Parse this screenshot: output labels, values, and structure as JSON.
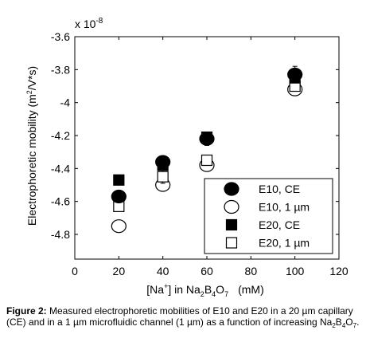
{
  "chart_data": {
    "type": "scatter",
    "title": "",
    "xlabel": "[Na⁺] in Na₂B₄O₇   (mM)",
    "xlabel_parts": {
      "a": "[Na",
      "sup": "+",
      "b": "] in Na",
      "s1": "2",
      "c": "B",
      "s2": "4",
      "d": "O",
      "s3": "7",
      "unit": "(mM)"
    },
    "ylabel": "Electrophoretic mobility (m²/V*s)",
    "ylabel_parts": {
      "a": "Electrophoretic mobility (m",
      "sup": "2",
      "b": "/V*s)"
    },
    "exponent_label": "x 10",
    "exponent_power": "-8",
    "xlim": [
      0,
      120
    ],
    "ylim": [
      -4.95,
      -3.6
    ],
    "xticks": [
      0,
      20,
      40,
      60,
      80,
      100,
      120
    ],
    "xtick_labels": [
      "0",
      "20",
      "40",
      "60",
      "80",
      "100",
      "120"
    ],
    "yticks": [
      -3.6,
      -3.8,
      -4.0,
      -4.2,
      -4.4,
      -4.6,
      -4.8
    ],
    "ytick_labels": [
      "-3.6",
      "-3.8",
      "-4",
      "-4.2",
      "-4.4",
      "-4.6",
      "-4.8"
    ],
    "grid": false,
    "legend_position": "bottom-right",
    "series": [
      {
        "name": "E10, CE",
        "marker": "circle-filled",
        "x": [
          20,
          40,
          60,
          100
        ],
        "y": [
          -4.57,
          -4.36,
          -4.22,
          -3.83
        ],
        "err": [
          0.02,
          0.03,
          0.04,
          0.05
        ]
      },
      {
        "name": "E10, 1 µm",
        "marker": "circle-open",
        "x": [
          20,
          40,
          60,
          100
        ],
        "y": [
          -4.75,
          -4.5,
          -4.38,
          -3.92
        ],
        "err": [
          0.03,
          0.03,
          0.02,
          0.02
        ]
      },
      {
        "name": "E20, CE",
        "marker": "square-filled",
        "x": [
          20,
          40,
          60,
          100
        ],
        "y": [
          -4.47,
          -4.38,
          -4.21,
          -3.85
        ],
        "err": [
          0.02,
          0.02,
          0.03,
          0.03
        ]
      },
      {
        "name": "E20, 1 µm",
        "marker": "square-open",
        "x": [
          20,
          40,
          60,
          100
        ],
        "y": [
          -4.63,
          -4.45,
          -4.35,
          -3.9
        ],
        "err": [
          0.03,
          0.04,
          0.03,
          0.03
        ]
      }
    ]
  },
  "caption": {
    "label": "Figure 2:",
    "text": " Measured electrophoretic mobilities of E10 and E20 in a 20 µm capillary (CE) and in a 1 µm microfluidic channel (1 µm) as a function of increasing Na",
    "s1": "2",
    "b": "B",
    "s2": "4",
    "c": "O",
    "s3": "7",
    "end": "."
  }
}
